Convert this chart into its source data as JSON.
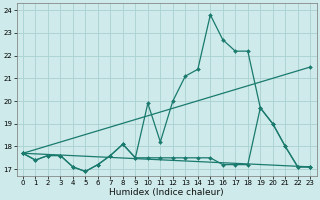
{
  "xlabel": "Humidex (Indice chaleur)",
  "bg_color": "#ceeaea",
  "grid_color": "#add4d4",
  "line_color": "#1a7a6e",
  "xlim": [
    -0.5,
    23.5
  ],
  "ylim": [
    16.7,
    24.3
  ],
  "xticks": [
    0,
    1,
    2,
    3,
    4,
    5,
    6,
    7,
    8,
    9,
    10,
    11,
    12,
    13,
    14,
    15,
    16,
    17,
    18,
    19,
    20,
    21,
    22,
    23
  ],
  "yticks": [
    17,
    18,
    19,
    20,
    21,
    22,
    23,
    24
  ],
  "series": [
    {
      "x": [
        0,
        23
      ],
      "y": [
        17.7,
        17.1
      ]
    },
    {
      "x": [
        0,
        23
      ],
      "y": [
        17.7,
        21.5
      ]
    },
    {
      "x": [
        0,
        1,
        2,
        3,
        4,
        5,
        6,
        7,
        8,
        9,
        10,
        11,
        12,
        13,
        14,
        15,
        16,
        17,
        18,
        19,
        20,
        21,
        22,
        23
      ],
      "y": [
        17.7,
        17.4,
        17.6,
        17.6,
        17.1,
        16.9,
        17.2,
        17.6,
        18.1,
        17.5,
        17.5,
        17.5,
        17.5,
        17.5,
        17.5,
        17.5,
        17.2,
        17.2,
        17.2,
        19.7,
        19.0,
        18.0,
        17.1,
        17.1
      ]
    },
    {
      "x": [
        0,
        1,
        2,
        3,
        4,
        5,
        6,
        7,
        8,
        9,
        10,
        11,
        12,
        13,
        14,
        15,
        16,
        17,
        18,
        19,
        20,
        21,
        22,
        23
      ],
      "y": [
        17.7,
        17.4,
        17.6,
        17.6,
        17.1,
        16.9,
        17.2,
        17.6,
        18.1,
        17.5,
        19.9,
        18.2,
        20.0,
        21.1,
        21.4,
        23.8,
        22.7,
        22.2,
        22.2,
        19.7,
        19.0,
        18.0,
        17.1,
        17.1
      ]
    }
  ]
}
